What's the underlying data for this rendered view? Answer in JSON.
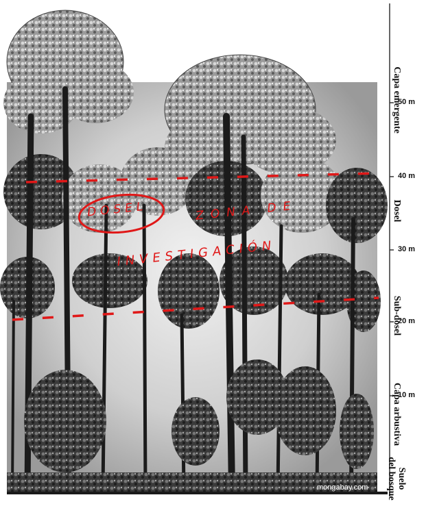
{
  "scale": {
    "heights": [
      "50 m",
      "40 m",
      "30 m",
      "20 m",
      "10 m"
    ]
  },
  "layers": {
    "emergent": "Capa emergente",
    "canopy": "Dosel",
    "subcanopy": "Sub-dosel",
    "shrub": "Capa arbustiva",
    "floor_line1": "Suelo",
    "floor_line2": "del bosque"
  },
  "annotations": {
    "circled": "DOSEL",
    "zone_line1": "ZONA DE",
    "zone_line2": "INVESTIGACIÓN"
  },
  "credit": "mongabay.com",
  "colors": {
    "annotation_red": "#e01818",
    "foliage_dark": "#2a2a2a",
    "foliage_light": "#bdbdbd"
  }
}
